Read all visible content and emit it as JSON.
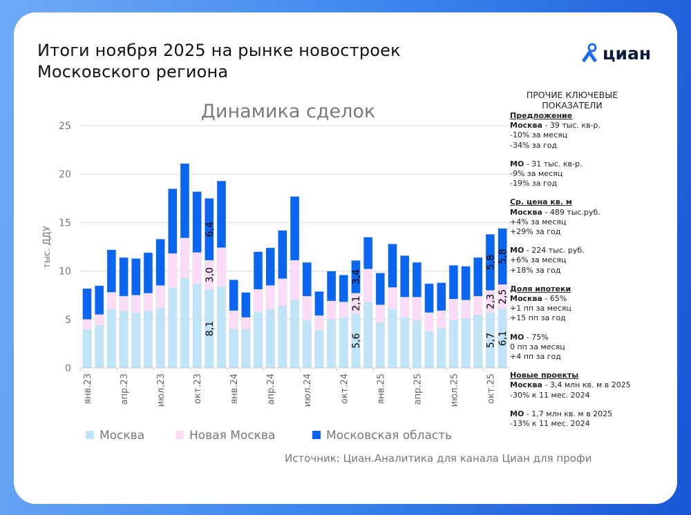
{
  "header": {
    "title_line1": "Итоги ноября 2025 на рынке новостроек",
    "title_line2": "Московского региона",
    "logo_text": "циан"
  },
  "colors": {
    "moscow": "#bfe3f7",
    "new_moscow": "#fadcf6",
    "mo": "#0a66f0",
    "brand": "#1a6bf0"
  },
  "chart_data": {
    "type": "bar",
    "stacked": true,
    "title": "Динамика сделок",
    "ylabel": "тыс. ДДУ",
    "xlabel": "",
    "ylim": [
      0,
      25
    ],
    "yticks": [
      0,
      5,
      10,
      15,
      20,
      25
    ],
    "grid": true,
    "legend_position": "bottom",
    "categories": [
      "янв.23",
      "фев.23",
      "мар.23",
      "апр.23",
      "май.23",
      "июн.23",
      "июл.23",
      "авг.23",
      "сен.23",
      "окт.23",
      "ноя.23",
      "дек.23",
      "янв.24",
      "фев.24",
      "мар.24",
      "апр.24",
      "май.24",
      "июн.24",
      "июл.24",
      "авг.24",
      "сен.24",
      "окт.24",
      "ноя.24",
      "дек.24",
      "янв.25",
      "фев.25",
      "мар.25",
      "апр.25",
      "май.25",
      "июн.25",
      "июл.25",
      "авг.25",
      "сен.25",
      "окт.25",
      "ноя.25"
    ],
    "tick_labels": [
      "янв.23",
      "апр.23",
      "июл.23",
      "окт.23",
      "янв.24",
      "апр.24",
      "июл.24",
      "окт.24",
      "янв.25",
      "апр.25",
      "июл.25",
      "окт.25"
    ],
    "series": [
      {
        "name": "Москва",
        "values": [
          4.0,
          4.4,
          6.1,
          5.9,
          5.7,
          5.9,
          6.2,
          8.3,
          9.3,
          8.7,
          8.1,
          8.4,
          4.0,
          4.0,
          5.8,
          6.1,
          6.4,
          7.0,
          4.9,
          3.9,
          5.0,
          5.2,
          5.6,
          6.8,
          4.7,
          6.1,
          5.2,
          4.9,
          3.8,
          4.1,
          4.9,
          5.1,
          5.5,
          5.7,
          6.1
        ]
      },
      {
        "name": "Новая Москва",
        "values": [
          1.0,
          1.1,
          1.7,
          1.5,
          1.8,
          1.8,
          2.3,
          3.5,
          4.1,
          3.2,
          3.0,
          4.0,
          1.9,
          1.2,
          2.3,
          2.4,
          2.8,
          4.1,
          2.5,
          1.5,
          1.9,
          1.6,
          2.1,
          3.4,
          1.8,
          2.2,
          2.1,
          2.4,
          1.9,
          1.8,
          2.2,
          1.9,
          1.9,
          2.3,
          2.5
        ]
      },
      {
        "name": "Московская область",
        "values": [
          3.2,
          3.0,
          4.4,
          4.0,
          3.8,
          4.2,
          4.8,
          6.7,
          7.7,
          6.3,
          6.4,
          6.9,
          3.2,
          2.6,
          3.9,
          3.9,
          5.0,
          6.6,
          3.5,
          2.5,
          3.1,
          2.8,
          3.4,
          3.3,
          3.3,
          4.5,
          4.3,
          3.6,
          3.0,
          2.9,
          3.5,
          3.5,
          4.0,
          5.8,
          5.8
        ]
      }
    ],
    "data_labels": [
      {
        "category": "ноя.23",
        "values": [
          "8,1",
          "3,0",
          "6,4"
        ]
      },
      {
        "category": "ноя.24",
        "values": [
          "5,6",
          "2,1",
          "3,4"
        ]
      },
      {
        "category": "окт.25",
        "values": [
          "5,7",
          "2,3",
          "5,8"
        ]
      },
      {
        "category": "ноя.25",
        "values": [
          "6,1",
          "2,5",
          "5,8"
        ]
      }
    ]
  },
  "side": {
    "title_line1": "ПРОЧИЕ КЛЮЧЕВЫЕ",
    "title_line2": "ПОКАЗАТЕЛИ",
    "sections": [
      {
        "heading": "Предложение",
        "blocks": [
          {
            "region": "Москва",
            "value": " - 39 тыс. кв-р.",
            "lines": [
              "-10% за месяц",
              "-34% за год"
            ]
          },
          {
            "region": "МО",
            "value": " - 31 тыс. кв-р.",
            "lines": [
              "-9% за месяц",
              "-19% за год"
            ]
          }
        ]
      },
      {
        "heading": "Ср. цена кв. м",
        "blocks": [
          {
            "region": "Москва",
            "value": " - 489 тыс.руб.",
            "lines": [
              "+4% за месяц",
              "+29% за год"
            ]
          },
          {
            "region": "МО",
            "value": " - 224 тыс. руб.",
            "lines": [
              "+6% за месяц",
              "+18% за год"
            ]
          }
        ]
      },
      {
        "heading": "Доля ипотеки",
        "blocks": [
          {
            "region": "Москва",
            "value": " - 65%",
            "lines": [
              "+1 пп за месяц",
              "+15 пп за год"
            ]
          },
          {
            "region": "МО",
            "value": " - 75%",
            "lines": [
              "0 пп за месяц",
              "+4 пп за год"
            ]
          }
        ]
      },
      {
        "heading": "Новые проекты",
        "blocks": [
          {
            "region": "Москва",
            "value": " - 3,4 млн кв. м в 2025",
            "lines": [
              "-30% к 11 мес. 2024"
            ]
          },
          {
            "region": "МО",
            "value": " - 1,7 млн кв. м в 2025",
            "lines": [
              "-13% к 11 мес. 2024"
            ]
          }
        ]
      }
    ]
  },
  "footer": {
    "source": "Источник: Циан.Аналитика для канала Циан для профи"
  }
}
